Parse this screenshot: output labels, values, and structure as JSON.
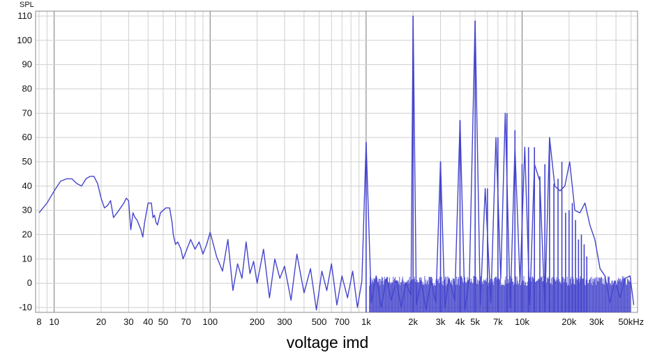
{
  "caption": "voltage imd",
  "chart_data": {
    "type": "line",
    "title": "",
    "xlabel": "",
    "ylabel": "SPL",
    "x_scale": "log",
    "xlim": [
      7.6,
      55000
    ],
    "ylim": [
      -12,
      112
    ],
    "grid": true,
    "line_color": "#4444cc",
    "y_ticks": [
      110,
      100,
      90,
      80,
      70,
      60,
      50,
      40,
      30,
      20,
      10,
      0,
      -10
    ],
    "y_tick_labels": [
      "110",
      "100",
      "90",
      "80",
      "70",
      "60",
      "50",
      "40",
      "30",
      "20",
      "10",
      "0",
      "-10"
    ],
    "x_ticks": [
      8,
      10,
      20,
      30,
      40,
      50,
      70,
      100,
      200,
      300,
      500,
      700,
      1000,
      2000,
      3000,
      4000,
      5000,
      7000,
      10000,
      20000,
      30000,
      50000
    ],
    "x_tick_labels": [
      "8",
      "10",
      "20",
      "30",
      "40",
      "50",
      "70",
      "100",
      "200",
      "300",
      "500",
      "700",
      "1k",
      "2k",
      "3k",
      "4k",
      "5k",
      "7k",
      "10k",
      "20k",
      "30k",
      "50kHz"
    ],
    "series": [
      {
        "name": "",
        "x": [
          8,
          9,
          10,
          11,
          12,
          13,
          14,
          15,
          16,
          17,
          18,
          19,
          20,
          21,
          22,
          23,
          24,
          26,
          28,
          29,
          30,
          31,
          32,
          33,
          34,
          35,
          36,
          37,
          38,
          40,
          42,
          43,
          44,
          45,
          46,
          48,
          50,
          52,
          55,
          57,
          58,
          60,
          62,
          65,
          67,
          70,
          75,
          80,
          85,
          90,
          95,
          100,
          110,
          120,
          130,
          140,
          150,
          160,
          170,
          180,
          190,
          200,
          220,
          240,
          260,
          280,
          300,
          330,
          360,
          400,
          440,
          480,
          520,
          560,
          600,
          650,
          700,
          760,
          820,
          880,
          940,
          1000,
          1080,
          1160,
          1250,
          1350,
          1450,
          1560,
          1680,
          1800,
          1940,
          2000,
          2100,
          2250,
          2420,
          2600,
          2800,
          3000,
          3200,
          3400,
          3700,
          4000,
          4300,
          4600,
          5000,
          5400,
          5800,
          6300,
          6800,
          7300,
          7800,
          8400,
          9000,
          9700,
          10400,
          11200,
          12000,
          13000,
          14000,
          15000,
          16200,
          17500,
          18800,
          20200,
          21800,
          23500,
          25300,
          27200,
          29300,
          31600,
          34000,
          36600,
          39400,
          42500,
          45700,
          49200,
          52000
        ],
        "y": [
          29,
          33,
          38,
          42,
          43,
          43,
          41,
          40,
          43,
          44,
          44,
          41,
          35,
          31,
          32,
          34,
          27,
          30,
          33,
          35,
          34,
          22,
          29,
          27,
          26,
          24,
          22,
          19,
          25,
          33,
          33,
          27,
          28,
          25,
          24,
          29,
          30,
          31,
          31,
          25,
          20,
          16,
          17,
          14,
          10,
          13,
          18,
          14,
          17,
          12,
          16,
          21,
          11,
          5,
          18,
          -3,
          8,
          2,
          17,
          4,
          9,
          0,
          14,
          -6,
          10,
          2,
          7,
          -7,
          12,
          -4,
          6,
          -11,
          5,
          -3,
          8,
          -9,
          3,
          -6,
          5,
          -10,
          1,
          58,
          -8,
          3,
          -10,
          2,
          -7,
          1,
          -10,
          0,
          -5,
          110,
          -9,
          1,
          -11,
          1,
          -8,
          50,
          -10,
          2,
          -7,
          67,
          -11,
          3,
          108,
          -9,
          39,
          -8,
          60,
          2,
          70,
          -10,
          56,
          0,
          56,
          -9,
          49,
          42,
          -10,
          60,
          40,
          38,
          40,
          50,
          30,
          29,
          33,
          24,
          18,
          6,
          3,
          -8,
          1,
          -6,
          2,
          3,
          -9
        ]
      }
    ],
    "peaks": [
      {
        "x": 1000,
        "y": 58
      },
      {
        "x": 2000,
        "y": 110
      },
      {
        "x": 3000,
        "y": 50
      },
      {
        "x": 4000,
        "y": 67
      },
      {
        "x": 5000,
        "y": 108
      },
      {
        "x": 6000,
        "y": 39
      },
      {
        "x": 7000,
        "y": 60
      },
      {
        "x": 8000,
        "y": 70
      },
      {
        "x": 9000,
        "y": 63
      },
      {
        "x": 10000,
        "y": 49
      },
      {
        "x": 11000,
        "y": 56
      },
      {
        "x": 12000,
        "y": 56
      },
      {
        "x": 13000,
        "y": 44
      },
      {
        "x": 14000,
        "y": 49
      },
      {
        "x": 15000,
        "y": 60
      },
      {
        "x": 16000,
        "y": 41
      },
      {
        "x": 17000,
        "y": 43
      },
      {
        "x": 18000,
        "y": 50
      },
      {
        "x": 19000,
        "y": 29
      },
      {
        "x": 20000,
        "y": 30
      },
      {
        "x": 21000,
        "y": 33
      },
      {
        "x": 22000,
        "y": 26
      },
      {
        "x": 23000,
        "y": 18
      },
      {
        "x": 24000,
        "y": 20
      },
      {
        "x": 25000,
        "y": 16
      },
      {
        "x": 26000,
        "y": 11
      }
    ]
  }
}
